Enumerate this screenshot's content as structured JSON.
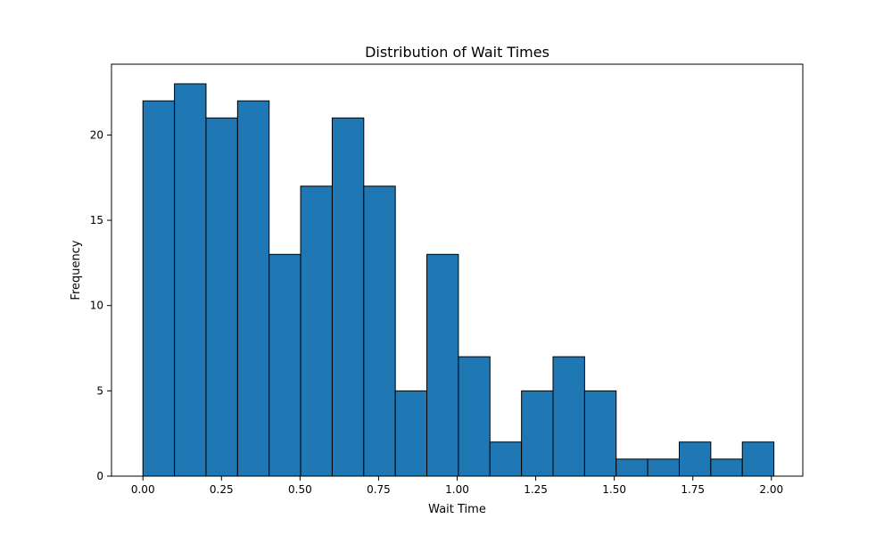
{
  "chart_data": {
    "type": "bar",
    "title": "Distribution of Wait Times",
    "xlabel": "Wait Time",
    "ylabel": "Frequency",
    "bin_start": 0.0,
    "bin_width": 0.1004,
    "values": [
      22,
      23,
      21,
      22,
      13,
      17,
      21,
      17,
      5,
      13,
      7,
      2,
      5,
      7,
      5,
      1,
      1,
      2,
      1,
      2
    ],
    "xlim": [
      -0.1,
      2.1
    ],
    "ylim": [
      0,
      24.15
    ],
    "xticks": [
      "0.00",
      "0.25",
      "0.50",
      "0.75",
      "1.00",
      "1.25",
      "1.50",
      "1.75",
      "2.00"
    ],
    "yticks": [
      "0",
      "5",
      "10",
      "15",
      "20"
    ],
    "bar_color": "#1f77b4",
    "edge_color": "#000000",
    "grid": false,
    "legend": "none"
  }
}
